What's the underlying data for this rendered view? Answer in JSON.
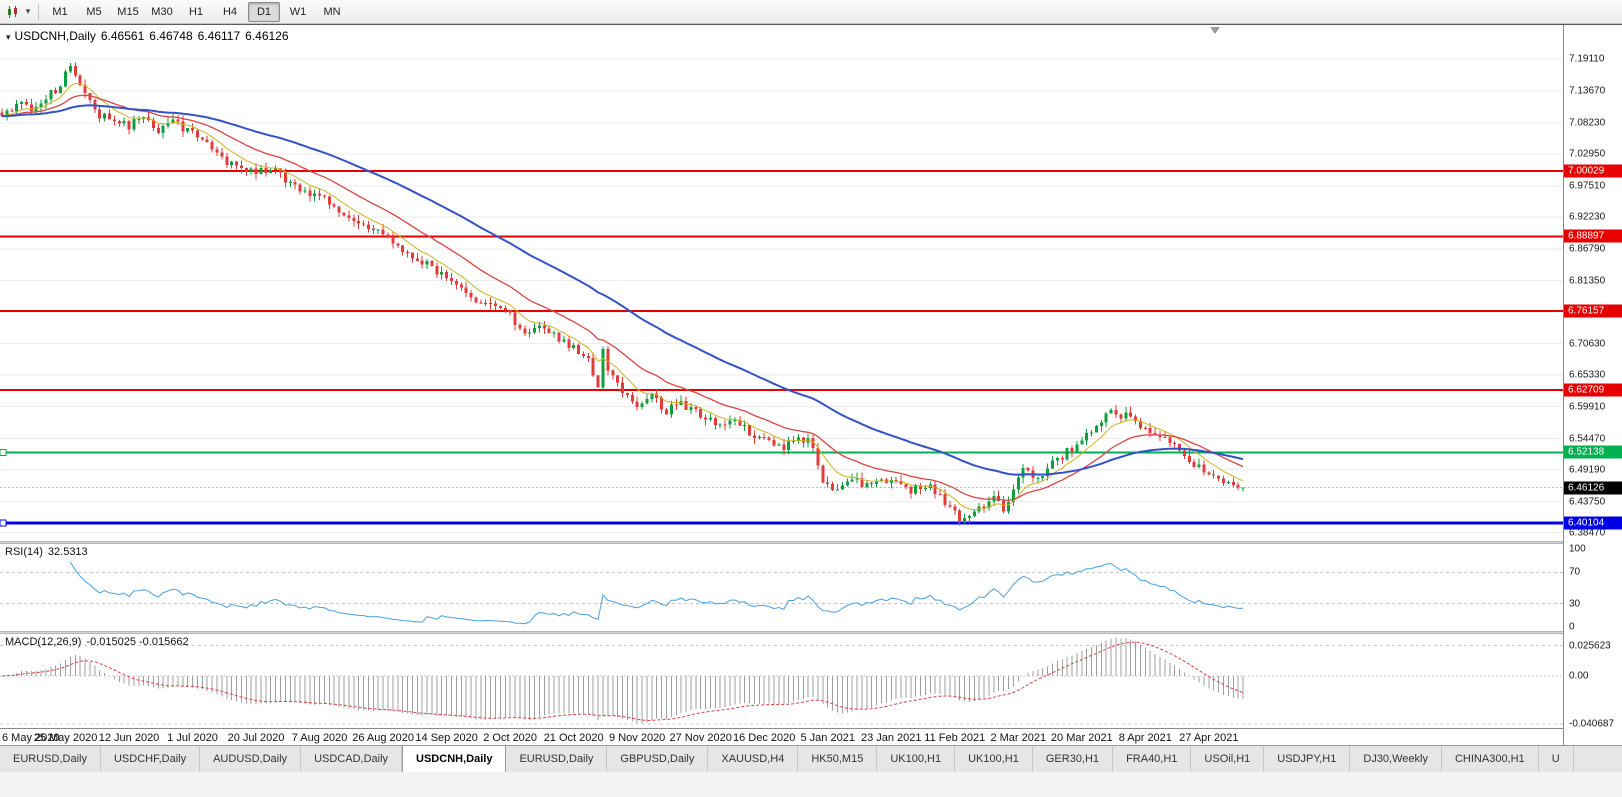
{
  "icons": {
    "caret_down": "▾"
  },
  "colors": {
    "candle_up": "#0f9f3c",
    "candle_down": "#e03c3c",
    "ma_fast": "#cdb422",
    "ma_mid": "#d94545",
    "ma_slow": "#3452c8",
    "rsi_line": "#4aa0e0",
    "macd_hist": "#9f9f9f",
    "macd_signal": "#e04040",
    "level_red": "#e60000",
    "level_green": "#00b050",
    "level_blue": "#0000e6",
    "price_marker_bg": "#000000",
    "grid": "#ededed"
  },
  "toolbar": {
    "timeframes": [
      "M1",
      "M5",
      "M15",
      "M30",
      "H1",
      "H4",
      "D1",
      "W1",
      "MN"
    ],
    "selected_timeframe": "D1"
  },
  "chart": {
    "symbol_period": "USDCNH,Daily",
    "ohlc": {
      "open": "6.46561",
      "high": "6.46748",
      "low": "6.46117",
      "close": "6.46126"
    }
  },
  "rsi": {
    "name": "RSI(14)",
    "value": "32.5313",
    "period": 14,
    "axis_labels": [
      "100",
      "70",
      "30",
      "0"
    ],
    "axis_values": [
      100,
      70,
      30,
      0
    ],
    "overbought": 70,
    "oversold": 30
  },
  "macd": {
    "name": "MACD(12,26,9)",
    "value": "-0.015025 -0.015662",
    "fast": 12,
    "slow": 26,
    "signal": 9,
    "axis_labels": [
      "0.025623",
      "0.00",
      "-0.040687"
    ],
    "axis_values": [
      0.025623,
      0,
      -0.040687
    ]
  },
  "tabs": {
    "selected_index": 4,
    "items": [
      "EURUSD,Daily",
      "USDCHF,Daily",
      "AUDUSD,Daily",
      "USDCAD,Daily",
      "USDCNH,Daily",
      "EURUSD,Daily",
      "GBPUSD,Daily",
      "XAUUSD,H4",
      "HK50,M15",
      "UK100,H1",
      "UK100,H1",
      "GER30,H1",
      "FRA40,H1",
      "USOil,H1",
      "USDJPY,H1",
      "DJ30,Weekly",
      "CHINA300,H1",
      "U"
    ]
  },
  "chart_data": {
    "type": "candlestick",
    "symbol": "USDCNH",
    "timeframe": "Daily",
    "last_ohlc": {
      "open": 6.46561,
      "high": 6.46748,
      "low": 6.46117,
      "close": 6.46126
    },
    "y_axis_labels": [
      "7.19110",
      "7.13670",
      "7.08230",
      "7.02950",
      "6.97510",
      "6.92230",
      "6.86790",
      "6.81350",
      "6.76070",
      "6.70630",
      "6.65330",
      "6.59910",
      "6.54470",
      "6.49190",
      "6.43750",
      "6.38470"
    ],
    "y_range": [
      6.3704,
      7.2489
    ],
    "x_axis_labels": [
      "6 May 2020",
      "25 May 2020",
      "12 Jun 2020",
      "1 Jul 2020",
      "20 Jul 2020",
      "7 Aug 2020",
      "26 Aug 2020",
      "14 Sep 2020",
      "2 Oct 2020",
      "21 Oct 2020",
      "9 Nov 2020",
      "27 Nov 2020",
      "16 Dec 2020",
      "5 Jan 2021",
      "23 Jan 2021",
      "11 Feb 2021",
      "2 Mar 2021",
      "20 Mar 2021",
      "8 Apr 2021",
      "27 Apr 2021"
    ],
    "label_every_days": 13,
    "trading_days": 255,
    "levels": [
      {
        "label": "7.00029",
        "value": 7.00029,
        "color_key": "level_red",
        "marker": false
      },
      {
        "label": "6.88897",
        "value": 6.88897,
        "color_key": "level_red",
        "marker": false
      },
      {
        "label": "6.76157",
        "value": 6.76157,
        "color_key": "level_red",
        "marker": false
      },
      {
        "label": "6.62709",
        "value": 6.62709,
        "color_key": "level_red",
        "marker": false
      },
      {
        "label": "6.52138",
        "value": 6.52138,
        "color_key": "level_green",
        "marker": true
      },
      {
        "label": "6.40104",
        "value": 6.40104,
        "color_key": "level_blue",
        "marker": true
      }
    ],
    "current_price": {
      "label": "6.46126",
      "value": 6.46126
    },
    "moving_averages": [
      {
        "period": 8,
        "color_key": "ma_fast"
      },
      {
        "period": 21,
        "color_key": "ma_mid"
      },
      {
        "period": 55,
        "color_key": "ma_slow"
      }
    ],
    "close_path_anchors": [
      [
        0,
        7.095
      ],
      [
        3,
        7.115
      ],
      [
        6,
        7.105
      ],
      [
        9,
        7.128
      ],
      [
        12,
        7.142
      ],
      [
        14,
        7.186
      ],
      [
        15,
        7.158
      ],
      [
        17,
        7.13
      ],
      [
        19,
        7.102
      ],
      [
        22,
        7.086
      ],
      [
        26,
        7.078
      ],
      [
        29,
        7.092
      ],
      [
        32,
        7.07
      ],
      [
        35,
        7.082
      ],
      [
        39,
        7.066
      ],
      [
        42,
        7.046
      ],
      [
        45,
        7.02
      ],
      [
        48,
        7.006
      ],
      [
        52,
        6.996
      ],
      [
        55,
        7.006
      ],
      [
        58,
        6.986
      ],
      [
        61,
        6.972
      ],
      [
        65,
        6.956
      ],
      [
        68,
        6.94
      ],
      [
        71,
        6.926
      ],
      [
        74,
        6.912
      ],
      [
        78,
        6.896
      ],
      [
        81,
        6.872
      ],
      [
        84,
        6.856
      ],
      [
        87,
        6.842
      ],
      [
        91,
        6.816
      ],
      [
        94,
        6.796
      ],
      [
        97,
        6.782
      ],
      [
        100,
        6.772
      ],
      [
        104,
        6.756
      ],
      [
        107,
        6.722
      ],
      [
        110,
        6.742
      ],
      [
        113,
        6.722
      ],
      [
        117,
        6.7
      ],
      [
        120,
        6.682
      ],
      [
        122,
        6.626
      ],
      [
        123,
        6.7
      ],
      [
        124,
        6.662
      ],
      [
        127,
        6.622
      ],
      [
        130,
        6.6
      ],
      [
        133,
        6.616
      ],
      [
        136,
        6.592
      ],
      [
        139,
        6.606
      ],
      [
        143,
        6.582
      ],
      [
        147,
        6.566
      ],
      [
        150,
        6.576
      ],
      [
        153,
        6.556
      ],
      [
        156,
        6.542
      ],
      [
        160,
        6.532
      ],
      [
        163,
        6.546
      ],
      [
        166,
        6.536
      ],
      [
        168,
        6.466
      ],
      [
        171,
        6.452
      ],
      [
        174,
        6.476
      ],
      [
        178,
        6.462
      ],
      [
        182,
        6.478
      ],
      [
        186,
        6.456
      ],
      [
        190,
        6.47
      ],
      [
        193,
        6.432
      ],
      [
        195,
        6.416
      ],
      [
        197,
        6.406
      ],
      [
        200,
        6.426
      ],
      [
        203,
        6.446
      ],
      [
        205,
        6.422
      ],
      [
        207,
        6.456
      ],
      [
        209,
        6.492
      ],
      [
        212,
        6.472
      ],
      [
        215,
        6.502
      ],
      [
        218,
        6.522
      ],
      [
        221,
        6.542
      ],
      [
        224,
        6.57
      ],
      [
        227,
        6.588
      ],
      [
        229,
        6.58
      ],
      [
        231,
        6.588
      ],
      [
        234,
        6.56
      ],
      [
        237,
        6.552
      ],
      [
        240,
        6.53
      ],
      [
        243,
        6.506
      ],
      [
        246,
        6.49
      ],
      [
        249,
        6.475
      ],
      [
        252,
        6.465
      ],
      [
        254,
        6.46126
      ]
    ]
  }
}
